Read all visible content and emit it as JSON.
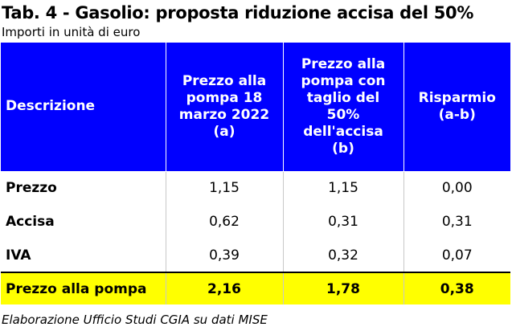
{
  "title": "Tab. 4 - Gasolio: proposta riduzione accisa del 50%",
  "subtitle": "Importi in unità di euro",
  "table": {
    "headers": [
      [
        "Descrizione"
      ],
      [
        "Prezzo alla",
        "pompa 18",
        "marzo 2022",
        "(a)"
      ],
      [
        "Prezzo alla",
        "pompa con",
        "taglio del",
        "50%",
        "dell'accisa",
        "(b)"
      ],
      [
        "Risparmio",
        "(a-b)"
      ]
    ],
    "rows": [
      [
        "Prezzo",
        "1,15",
        "1,15",
        "0,00"
      ],
      [
        "Accisa",
        "0,62",
        "0,31",
        "0,31"
      ],
      [
        "IVA",
        "0,39",
        "0,32",
        "0,07"
      ]
    ],
    "total": [
      "Prezzo alla pompa",
      "2,16",
      "1,78",
      "0,38"
    ]
  },
  "source": "Elaborazione Ufficio Studi CGIA su dati MISE",
  "colors": {
    "header_bg": "#0000ff",
    "header_text": "#ffffff",
    "total_bg": "#ffff00"
  }
}
